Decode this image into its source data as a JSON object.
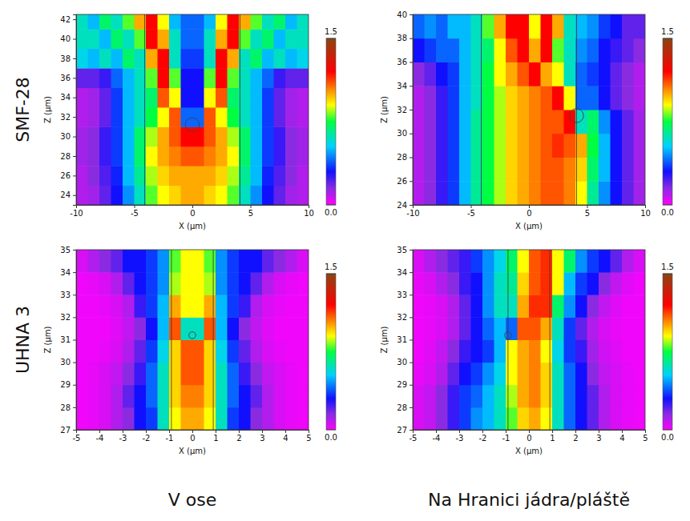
{
  "row_labels": [
    "SMF-28",
    "UHNA 3"
  ],
  "column_labels": [
    "V ose",
    "Na Hranici jádra/pláště"
  ],
  "chart_data": [
    {
      "type": "heatmap",
      "x_label": "X (µm)",
      "y_label": "Z (µm)",
      "xlim": [
        -10,
        10
      ],
      "xticks": [
        -10,
        -5,
        0,
        5,
        10
      ],
      "ylim": [
        23,
        42.5
      ],
      "yticks": [
        24,
        26,
        28,
        30,
        32,
        34,
        36,
        38,
        40,
        42
      ],
      "x_edges": [
        -10,
        -9,
        -8,
        -7,
        -6,
        -5,
        -4,
        -3,
        -2,
        -1,
        0,
        1,
        2,
        3,
        4,
        5,
        6,
        7,
        8,
        9,
        10
      ],
      "y_edges": [
        23,
        25,
        27,
        29,
        31,
        33,
        35,
        37,
        39,
        41,
        42.5
      ],
      "values": [
        [
          0.1,
          0.12,
          0.2,
          0.3,
          0.45,
          0.6,
          0.8,
          0.9,
          0.95,
          1.0,
          1.0,
          0.95,
          0.9,
          0.8,
          0.6,
          0.45,
          0.3,
          0.2,
          0.12,
          0.1
        ],
        [
          0.1,
          0.15,
          0.22,
          0.32,
          0.5,
          0.65,
          0.85,
          0.95,
          1.0,
          1.0,
          1.0,
          1.0,
          0.95,
          0.85,
          0.65,
          0.5,
          0.32,
          0.22,
          0.15,
          0.1
        ],
        [
          0.12,
          0.15,
          0.25,
          0.35,
          0.5,
          0.7,
          0.9,
          1.0,
          1.05,
          1.1,
          1.1,
          1.05,
          1.0,
          0.9,
          0.7,
          0.5,
          0.35,
          0.25,
          0.15,
          0.12
        ],
        [
          0.12,
          0.15,
          0.25,
          0.35,
          0.5,
          0.7,
          0.85,
          1.0,
          1.1,
          1.2,
          1.2,
          1.1,
          1.0,
          0.85,
          0.7,
          0.5,
          0.35,
          0.25,
          0.15,
          0.12
        ],
        [
          0.1,
          0.12,
          0.2,
          0.35,
          0.5,
          0.6,
          0.75,
          0.9,
          1.1,
          0.4,
          0.4,
          1.1,
          0.9,
          0.75,
          0.6,
          0.5,
          0.35,
          0.2,
          0.12,
          0.1
        ],
        [
          0.1,
          0.12,
          0.2,
          0.35,
          0.5,
          0.6,
          0.7,
          1.1,
          0.9,
          0.3,
          0.3,
          0.9,
          1.1,
          0.7,
          0.6,
          0.5,
          0.35,
          0.2,
          0.12,
          0.1
        ],
        [
          0.2,
          0.2,
          0.25,
          0.4,
          0.5,
          0.6,
          0.8,
          1.2,
          0.8,
          0.3,
          0.3,
          0.8,
          1.2,
          0.8,
          0.6,
          0.5,
          0.4,
          0.25,
          0.2,
          0.2
        ],
        [
          0.55,
          0.5,
          0.6,
          0.5,
          0.7,
          0.6,
          1.0,
          1.2,
          0.6,
          0.35,
          0.35,
          0.6,
          1.2,
          1.0,
          0.6,
          0.7,
          0.5,
          0.6,
          0.5,
          0.55
        ],
        [
          0.6,
          0.6,
          0.5,
          0.7,
          0.6,
          0.8,
          1.2,
          1.0,
          0.6,
          0.4,
          0.4,
          0.6,
          1.0,
          1.2,
          0.8,
          0.6,
          0.7,
          0.5,
          0.6,
          0.6
        ],
        [
          0.6,
          0.5,
          0.7,
          0.6,
          0.8,
          1.0,
          1.2,
          0.9,
          0.5,
          0.4,
          0.4,
          0.5,
          0.9,
          1.2,
          1.0,
          0.8,
          0.6,
          0.7,
          0.5,
          0.6
        ]
      ],
      "colorbar": {
        "range": [
          0,
          1.5
        ],
        "ticks": [
          {
            "value": 0,
            "label": "0.0"
          },
          1.5
        ]
      },
      "core_edges": [
        -4.1,
        4.1
      ],
      "particle": {
        "x": 0,
        "z": 31.2,
        "radius": 0.6
      }
    },
    {
      "type": "heatmap",
      "x_label": "X (µm)",
      "y_label": "Z (µm)",
      "xlim": [
        -10,
        10
      ],
      "xticks": [
        -10,
        -5,
        0,
        5,
        10
      ],
      "ylim": [
        24,
        40
      ],
      "yticks": [
        24,
        26,
        28,
        30,
        32,
        34,
        36,
        38,
        40
      ],
      "x_edges": [
        -10,
        -9,
        -8,
        -7,
        -6,
        -5,
        -4,
        -3,
        -2,
        -1,
        0,
        1,
        2,
        3,
        4,
        5,
        6,
        7,
        8,
        9,
        10
      ],
      "y_edges": [
        24,
        26,
        28,
        30,
        32,
        34,
        36,
        38,
        40
      ],
      "values": [
        [
          0.1,
          0.15,
          0.25,
          0.35,
          0.5,
          0.65,
          0.75,
          0.85,
          0.95,
          1.0,
          1.05,
          1.1,
          1.1,
          1.05,
          0.9,
          0.65,
          0.45,
          0.3,
          0.2,
          0.12
        ],
        [
          0.1,
          0.15,
          0.25,
          0.35,
          0.5,
          0.65,
          0.75,
          0.85,
          0.95,
          1.0,
          1.05,
          1.1,
          1.1,
          1.05,
          0.95,
          0.7,
          0.5,
          0.3,
          0.2,
          0.12
        ],
        [
          0.1,
          0.15,
          0.25,
          0.35,
          0.5,
          0.65,
          0.75,
          0.85,
          0.95,
          1.0,
          1.05,
          1.1,
          1.15,
          1.1,
          1.0,
          0.75,
          0.5,
          0.3,
          0.2,
          0.12
        ],
        [
          0.1,
          0.15,
          0.25,
          0.35,
          0.5,
          0.65,
          0.75,
          0.85,
          0.95,
          1.0,
          1.05,
          1.1,
          1.1,
          1.2,
          0.6,
          0.7,
          0.45,
          0.3,
          0.2,
          0.12
        ],
        [
          0.1,
          0.15,
          0.25,
          0.35,
          0.5,
          0.6,
          0.75,
          0.85,
          0.95,
          1.0,
          1.05,
          1.1,
          1.2,
          0.9,
          0.4,
          0.4,
          0.3,
          0.2,
          0.15,
          0.1
        ],
        [
          0.15,
          0.2,
          0.3,
          0.35,
          0.5,
          0.6,
          0.75,
          0.9,
          1.0,
          1.1,
          1.2,
          1.0,
          0.9,
          0.6,
          0.4,
          0.35,
          0.3,
          0.2,
          0.15,
          0.1
        ],
        [
          0.3,
          0.35,
          0.4,
          0.4,
          0.5,
          0.6,
          0.7,
          0.9,
          1.1,
          1.2,
          1.0,
          1.2,
          0.8,
          0.6,
          0.45,
          0.4,
          0.3,
          0.25,
          0.2,
          0.15
        ],
        [
          0.4,
          0.45,
          0.4,
          0.5,
          0.5,
          0.6,
          0.8,
          1.0,
          1.2,
          1.2,
          0.9,
          1.2,
          1.0,
          0.6,
          0.5,
          0.45,
          0.35,
          0.3,
          0.2,
          0.2
        ]
      ],
      "colorbar": {
        "range": [
          0,
          1.5
        ],
        "ticks": [
          {
            "value": 0,
            "label": "0.0"
          },
          1.5
        ]
      },
      "core_edges": [
        -4.1,
        4.1
      ],
      "particle": {
        "x": 4.1,
        "z": 31.5,
        "radius": 0.6
      }
    },
    {
      "type": "heatmap",
      "x_label": "X (µm)",
      "y_label": "Z (µm)",
      "xlim": [
        -5,
        5
      ],
      "xticks": [
        -5,
        -4,
        -3,
        -2,
        -1,
        0,
        1,
        2,
        3,
        4,
        5
      ],
      "ylim": [
        27,
        35
      ],
      "yticks": [
        27,
        28,
        29,
        30,
        31,
        32,
        33,
        34,
        35
      ],
      "x_edges": [
        -5,
        -4.5,
        -4,
        -3.5,
        -3,
        -2.5,
        -2,
        -1.5,
        -1,
        -0.5,
        0,
        0.5,
        1,
        1.5,
        2,
        2.5,
        3,
        3.5,
        4,
        4.5,
        5
      ],
      "y_edges": [
        27,
        28,
        29,
        30,
        31,
        32,
        33,
        34,
        35
      ],
      "values": [
        [
          0.02,
          0.03,
          0.05,
          0.1,
          0.15,
          0.3,
          0.35,
          0.6,
          0.9,
          1.0,
          1.0,
          0.9,
          0.6,
          0.35,
          0.3,
          0.15,
          0.1,
          0.05,
          0.03,
          0.02
        ],
        [
          0.02,
          0.03,
          0.05,
          0.1,
          0.2,
          0.3,
          0.4,
          0.6,
          0.95,
          1.05,
          1.05,
          0.95,
          0.6,
          0.4,
          0.3,
          0.2,
          0.1,
          0.05,
          0.03,
          0.02
        ],
        [
          0.02,
          0.03,
          0.05,
          0.08,
          0.15,
          0.25,
          0.4,
          0.6,
          0.95,
          1.1,
          1.1,
          0.95,
          0.6,
          0.4,
          0.25,
          0.15,
          0.08,
          0.05,
          0.03,
          0.02
        ],
        [
          0.02,
          0.02,
          0.03,
          0.05,
          0.1,
          0.2,
          0.35,
          0.55,
          0.95,
          1.1,
          1.1,
          0.95,
          0.55,
          0.35,
          0.2,
          0.1,
          0.05,
          0.03,
          0.02,
          0.02
        ],
        [
          0.02,
          0.02,
          0.02,
          0.04,
          0.08,
          0.15,
          0.3,
          0.5,
          1.1,
          0.6,
          0.6,
          1.1,
          0.5,
          0.3,
          0.15,
          0.08,
          0.04,
          0.02,
          0.02,
          0.02
        ],
        [
          0.02,
          0.02,
          0.03,
          0.05,
          0.1,
          0.25,
          0.35,
          0.5,
          1.0,
          0.9,
          0.9,
          1.0,
          0.5,
          0.35,
          0.25,
          0.1,
          0.05,
          0.03,
          0.02,
          0.02
        ],
        [
          0.02,
          0.03,
          0.05,
          0.1,
          0.2,
          0.3,
          0.35,
          0.45,
          0.85,
          0.9,
          0.9,
          0.85,
          0.45,
          0.35,
          0.3,
          0.2,
          0.1,
          0.05,
          0.03,
          0.02
        ],
        [
          0.05,
          0.1,
          0.15,
          0.2,
          0.3,
          0.3,
          0.35,
          0.45,
          0.8,
          0.9,
          0.9,
          0.8,
          0.45,
          0.35,
          0.3,
          0.3,
          0.2,
          0.15,
          0.1,
          0.05
        ]
      ],
      "colorbar": {
        "range": [
          0,
          1.5
        ],
        "ticks": [
          {
            "value": 0,
            "label": "0.0"
          },
          1.5
        ]
      },
      "core_edges": [
        -0.9,
        0.9
      ],
      "particle": {
        "x": 0,
        "z": 31.2,
        "radius": 0.15
      }
    },
    {
      "type": "heatmap",
      "x_label": "X (µm)",
      "y_label": "Z (µm)",
      "xlim": [
        -5,
        5
      ],
      "xticks": [
        -5,
        -4,
        -3,
        -2,
        -1,
        0,
        1,
        2,
        3,
        4,
        5
      ],
      "ylim": [
        27,
        35
      ],
      "yticks": [
        27,
        28,
        29,
        30,
        31,
        32,
        33,
        34,
        35
      ],
      "x_edges": [
        -5,
        -4.5,
        -4,
        -3.5,
        -3,
        -2.5,
        -2,
        -1.5,
        -1,
        -0.5,
        0,
        0.5,
        1,
        1.5,
        2,
        2.5,
        3,
        3.5,
        4,
        4.5,
        5
      ],
      "y_edges": [
        27,
        28,
        29,
        30,
        31,
        32,
        33,
        34,
        35
      ],
      "values": [
        [
          0.05,
          0.08,
          0.15,
          0.25,
          0.35,
          0.45,
          0.5,
          0.6,
          0.8,
          0.95,
          1.0,
          0.9,
          0.6,
          0.4,
          0.3,
          0.2,
          0.1,
          0.05,
          0.03,
          0.02
        ],
        [
          0.05,
          0.08,
          0.15,
          0.25,
          0.35,
          0.4,
          0.5,
          0.6,
          0.85,
          1.0,
          1.05,
          0.95,
          0.6,
          0.4,
          0.3,
          0.2,
          0.1,
          0.05,
          0.03,
          0.02
        ],
        [
          0.03,
          0.05,
          0.1,
          0.2,
          0.3,
          0.35,
          0.45,
          0.55,
          0.9,
          1.0,
          1.05,
          0.95,
          0.6,
          0.4,
          0.3,
          0.15,
          0.08,
          0.05,
          0.03,
          0.02
        ],
        [
          0.02,
          0.04,
          0.08,
          0.15,
          0.25,
          0.3,
          0.35,
          0.5,
          0.9,
          1.0,
          1.05,
          0.9,
          0.55,
          0.35,
          0.25,
          0.12,
          0.06,
          0.04,
          0.02,
          0.02
        ],
        [
          0.02,
          0.03,
          0.05,
          0.1,
          0.2,
          0.3,
          0.4,
          0.5,
          0.4,
          1.1,
          1.1,
          1.0,
          0.6,
          0.35,
          0.2,
          0.1,
          0.05,
          0.03,
          0.02,
          0.02
        ],
        [
          0.02,
          0.03,
          0.05,
          0.1,
          0.2,
          0.3,
          0.45,
          0.6,
          0.6,
          1.0,
          1.15,
          1.15,
          0.7,
          0.45,
          0.3,
          0.15,
          0.08,
          0.04,
          0.02,
          0.02
        ],
        [
          0.03,
          0.05,
          0.1,
          0.15,
          0.25,
          0.3,
          0.45,
          0.6,
          0.65,
          0.95,
          1.1,
          1.15,
          0.9,
          0.5,
          0.35,
          0.3,
          0.15,
          0.08,
          0.04,
          0.02
        ],
        [
          0.05,
          0.1,
          0.15,
          0.2,
          0.25,
          0.35,
          0.45,
          0.55,
          0.7,
          0.9,
          1.1,
          1.15,
          0.9,
          0.7,
          0.45,
          0.35,
          0.3,
          0.2,
          0.1,
          0.05
        ]
      ],
      "colorbar": {
        "range": [
          0,
          1.5
        ],
        "ticks": [
          {
            "value": 0,
            "label": "0.0"
          },
          1.5
        ]
      },
      "core_edges": [
        -0.9,
        0.9
      ],
      "particle": {
        "x": -0.9,
        "z": 31.2,
        "radius": 0.15
      }
    }
  ]
}
